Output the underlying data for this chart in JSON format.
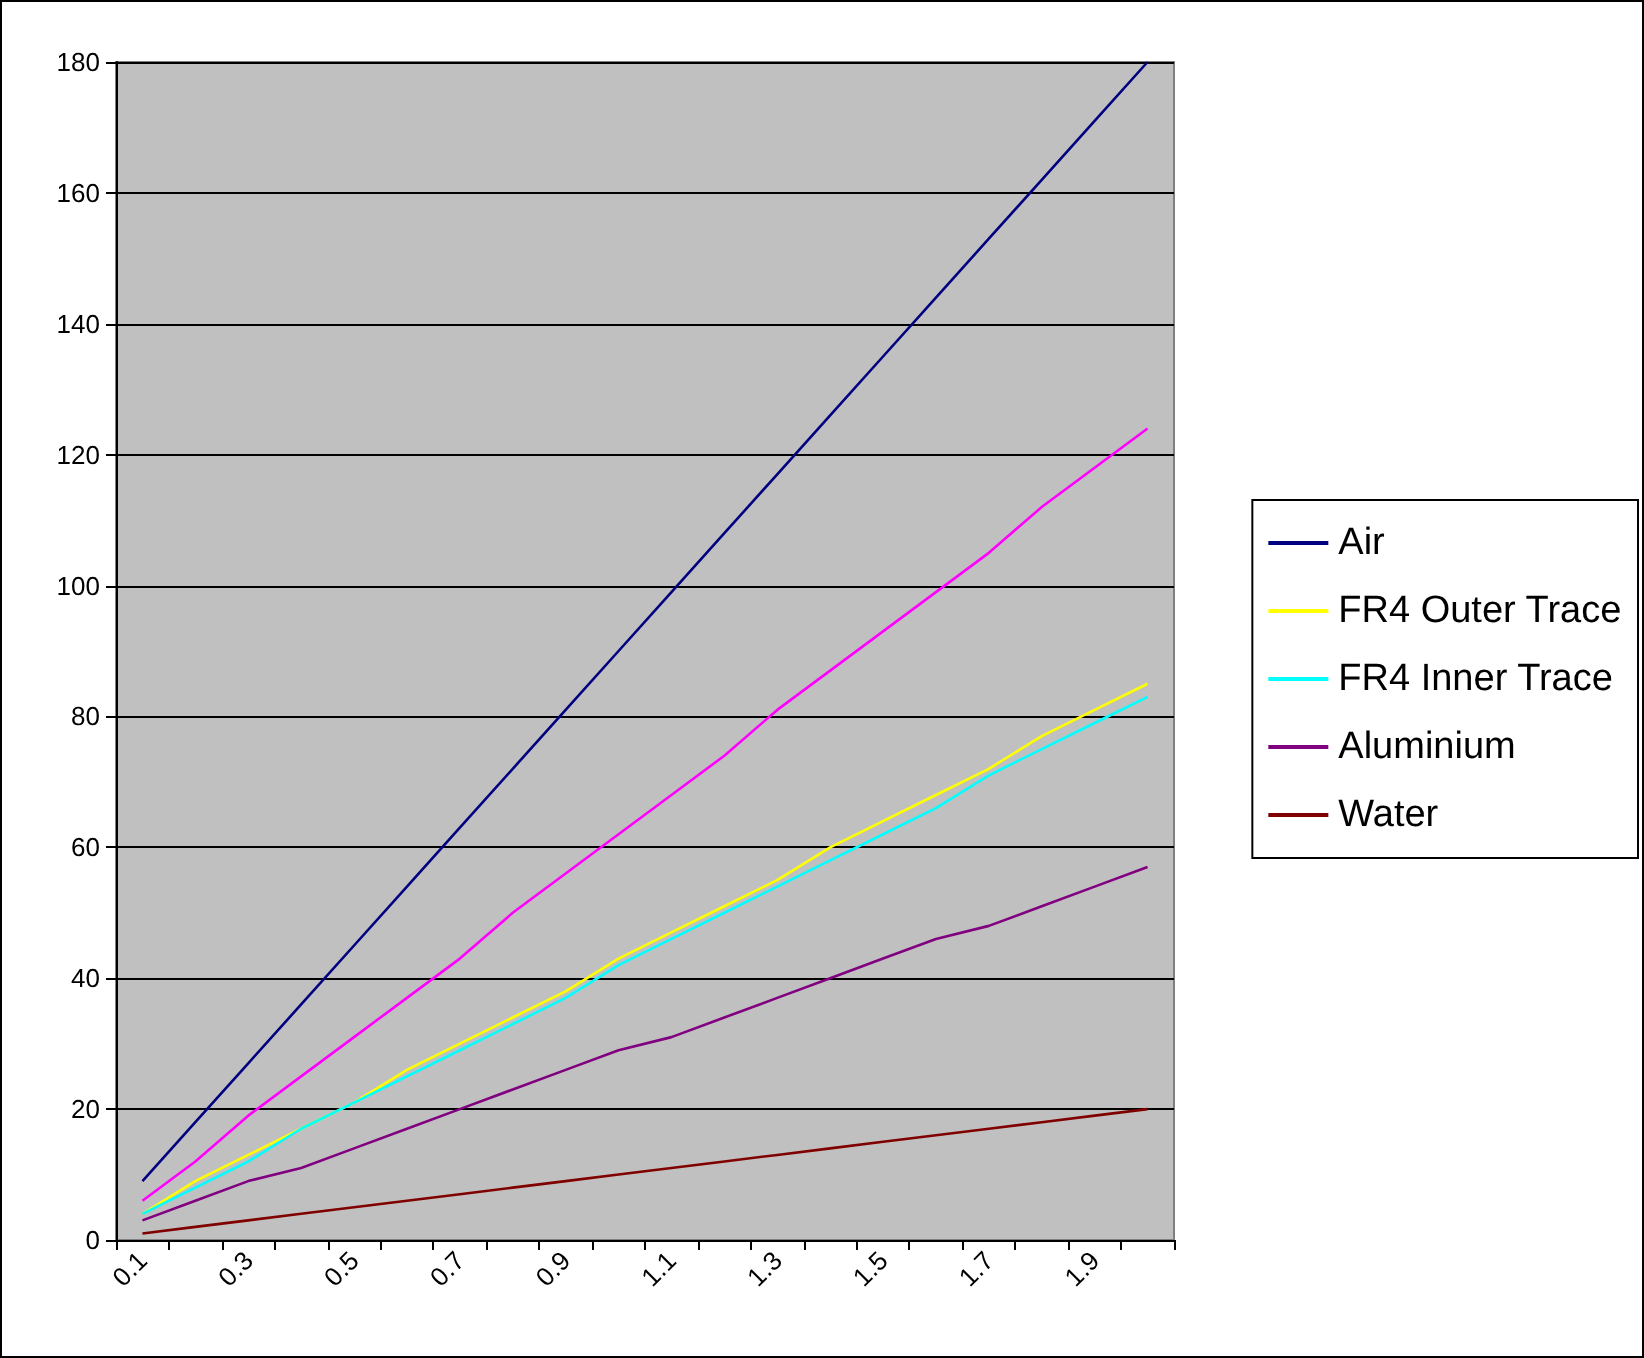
{
  "chart_data": {
    "type": "line",
    "categories": [
      "0.1",
      null,
      "0.3",
      null,
      "0.5",
      null,
      "0.7",
      null,
      "0.9",
      null,
      "1.1",
      null,
      "1.3",
      null,
      "1.5",
      null,
      "1.7",
      null,
      "1.9",
      null
    ],
    "series": [
      {
        "name": "Air",
        "color": "#000080",
        "values": [
          9,
          18,
          27,
          36,
          45,
          54,
          63,
          72,
          81,
          90,
          99,
          108,
          117,
          126,
          135,
          144,
          153,
          162,
          171,
          180
        ]
      },
      {
        "color": "#ff00ff",
        "values": [
          6,
          12,
          19,
          25,
          31,
          37,
          43,
          50,
          56,
          62,
          68,
          74,
          81,
          87,
          93,
          99,
          105,
          112,
          118,
          124
        ]
      },
      {
        "name": "FR4 Outer Trace",
        "color": "#ffff00",
        "values": [
          4,
          9,
          13,
          17,
          21,
          26,
          30,
          34,
          38,
          43,
          47,
          51,
          55,
          60,
          64,
          68,
          72,
          77,
          81,
          85
        ]
      },
      {
        "name": "FR4 Inner Trace",
        "color": "#00ffff",
        "values": [
          4,
          8,
          12,
          17,
          21,
          25,
          29,
          33,
          37,
          42,
          46,
          50,
          54,
          58,
          62,
          66,
          71,
          75,
          79,
          83
        ]
      },
      {
        "name": "Aluminium",
        "color": "#800080",
        "values": [
          3,
          6,
          9,
          11,
          14,
          17,
          20,
          23,
          26,
          29,
          31,
          34,
          37,
          40,
          43,
          46,
          48,
          51,
          54,
          57
        ]
      },
      {
        "name": "Water",
        "color": "#800000",
        "values": [
          1,
          2,
          3,
          4,
          5,
          6,
          7,
          8,
          9,
          10,
          11,
          12,
          13,
          14,
          15,
          16,
          17,
          18,
          19,
          20
        ]
      }
    ],
    "ylim": [
      0,
      180
    ],
    "yticks": [
      0,
      20,
      40,
      60,
      80,
      100,
      120,
      140,
      160,
      180
    ],
    "grid": "y",
    "legend": "right",
    "marker": "none",
    "line_style": "solid"
  }
}
